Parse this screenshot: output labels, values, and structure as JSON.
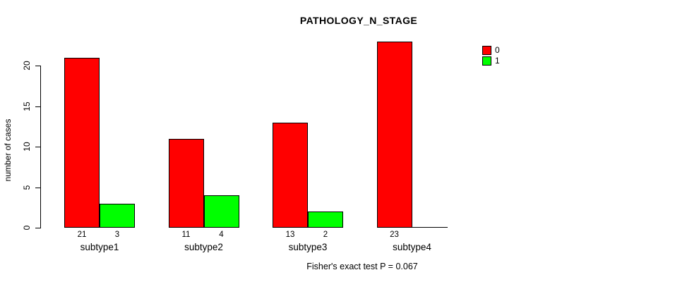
{
  "chart_data": {
    "type": "bar",
    "title": "PATHOLOGY_N_STAGE",
    "categories": [
      "subtype1",
      "subtype2",
      "subtype3",
      "subtype4"
    ],
    "series": [
      {
        "name": "0",
        "color": "#FF0000",
        "values": [
          21,
          11,
          13,
          23
        ]
      },
      {
        "name": "1",
        "color": "#00FF00",
        "values": [
          3,
          4,
          2,
          0
        ]
      }
    ],
    "xlabel": "",
    "ylabel": "number of cases",
    "ylim": [
      0,
      23
    ],
    "yticks": [
      0,
      5,
      10,
      15,
      20
    ],
    "grid": false,
    "legend_position": "top-right",
    "bar_value_labels": true,
    "annotation": "Fisher's exact test P = 0.067"
  },
  "colors": {
    "background": "#FFFFFF",
    "axis": "#000000",
    "series_0": "#FF0000",
    "series_1": "#00FF00"
  }
}
